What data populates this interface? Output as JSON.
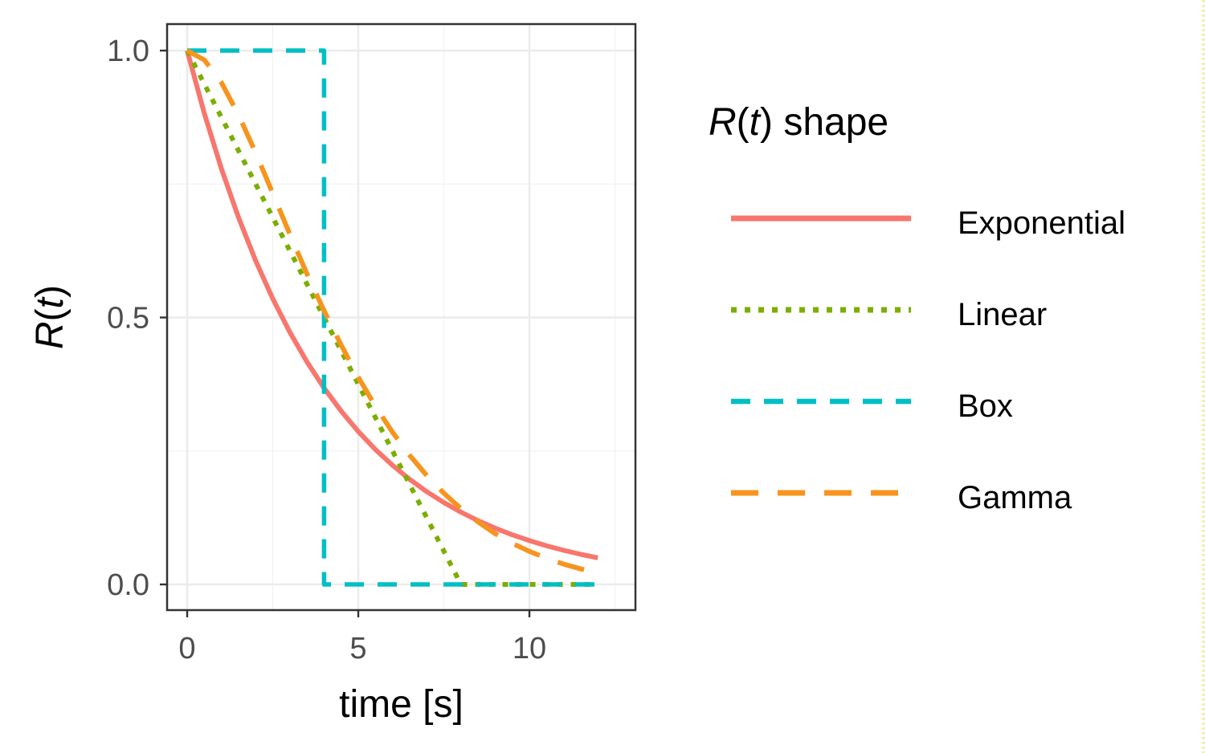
{
  "chart_data": {
    "type": "line",
    "xlabel": "time [s]",
    "ylabel": {
      "italic": "R",
      "open": "(",
      "var": "t",
      "close": ")"
    },
    "xlim": [
      -0.6,
      13.1
    ],
    "ylim": [
      -0.05,
      1.05
    ],
    "x_ticks": [
      0,
      5,
      10
    ],
    "x_tick_labels": [
      "0",
      "5",
      "10"
    ],
    "y_ticks": [
      0.0,
      0.5,
      1.0
    ],
    "y_tick_labels": [
      "0.0",
      "0.5",
      "1.0"
    ],
    "x_minor_grid": [
      2.5,
      7.5,
      12.5
    ],
    "y_minor_grid": [
      0.25,
      0.75
    ],
    "grid": true,
    "legend": {
      "title": {
        "italic": "R",
        "open": "(",
        "var": "t",
        "close": ")",
        "rest": " shape"
      },
      "position": "right"
    },
    "series": [
      {
        "name": "Exponential",
        "color": "#F8766D",
        "style": "solid",
        "x": [
          0,
          0.5,
          1,
          1.5,
          2,
          2.5,
          3,
          3.5,
          4,
          4.5,
          5,
          5.5,
          6,
          6.5,
          7,
          7.5,
          8,
          8.5,
          9,
          9.5,
          10,
          10.5,
          11,
          11.5,
          12
        ],
        "y": [
          1.0,
          0.8825,
          0.7788,
          0.6873,
          0.6065,
          0.5353,
          0.4724,
          0.4169,
          0.3679,
          0.3247,
          0.2865,
          0.2528,
          0.2231,
          0.1969,
          0.1738,
          0.1534,
          0.1353,
          0.1194,
          0.1054,
          0.093,
          0.0821,
          0.0724,
          0.0639,
          0.0564,
          0.0498
        ]
      },
      {
        "name": "Linear",
        "color": "#7CAE00",
        "style": "dotted",
        "x": [
          0,
          8,
          12
        ],
        "y": [
          1.0,
          0.0,
          0.0
        ]
      },
      {
        "name": "Box",
        "color": "#00BFC4",
        "style": "dashed",
        "x": [
          0,
          4,
          4,
          12
        ],
        "y": [
          1.0,
          1.0,
          0.0,
          0.0
        ]
      },
      {
        "name": "Gamma",
        "color": "#F7941D",
        "style": "longdash",
        "x": [
          0,
          0.5,
          1,
          1.5,
          2,
          2.5,
          3,
          3.5,
          4,
          4.5,
          5,
          5.5,
          6,
          6.5,
          7,
          7.5,
          8,
          8.5,
          9,
          9.5,
          10,
          10.5,
          11,
          11.5,
          12
        ],
        "y": [
          1.0,
          0.9825,
          0.9402,
          0.8795,
          0.8088,
          0.7326,
          0.656,
          0.5818,
          0.5126,
          0.4482,
          0.3881,
          0.3337,
          0.2851,
          0.242,
          0.204,
          0.171,
          0.142,
          0.117,
          0.095,
          0.077,
          0.062,
          0.049,
          0.038,
          0.029,
          0.022
        ]
      }
    ]
  }
}
